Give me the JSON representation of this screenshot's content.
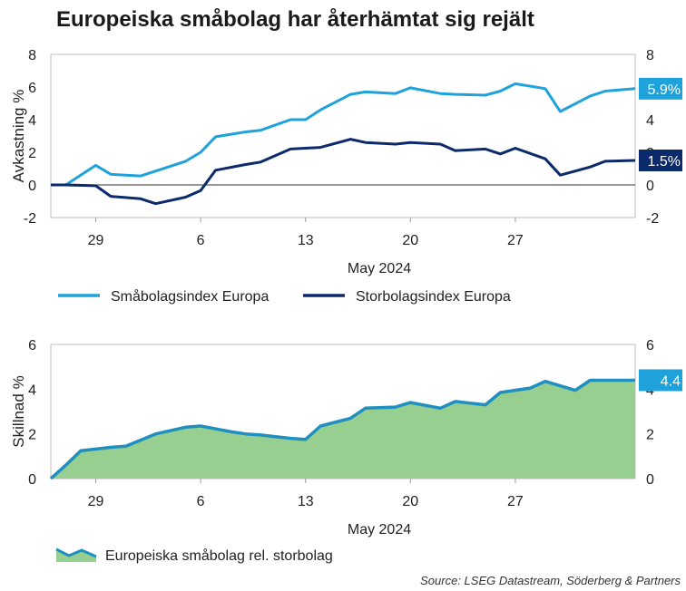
{
  "title": "Europeiska småbolag har återhämtat sig rejält",
  "source": "Source: LSEG Datastream, Söderberg & Partners",
  "colors": {
    "small": "#1fa2dc",
    "large": "#0b2a6b",
    "area_fill": "#96cf90",
    "area_line": "#1f8fbf"
  },
  "chart_data": [
    {
      "type": "line",
      "ylabel": "Avkastning %",
      "xlabel": "May 2024",
      "ylim": [
        -2,
        8
      ],
      "yticks": [
        -2,
        0,
        2,
        4,
        6,
        8
      ],
      "xlim": [
        "2024-04-26",
        "2024-06-04"
      ],
      "xticks": [
        {
          "date": "2024-04-29",
          "label": "29"
        },
        {
          "date": "2024-05-06",
          "label": "6"
        },
        {
          "date": "2024-05-13",
          "label": "13"
        },
        {
          "date": "2024-05-20",
          "label": "20"
        },
        {
          "date": "2024-05-27",
          "label": "27"
        }
      ],
      "x": [
        "2024-04-26",
        "2024-04-27",
        "2024-04-29",
        "2024-04-30",
        "2024-05-02",
        "2024-05-03",
        "2024-05-05",
        "2024-05-06",
        "2024-05-07",
        "2024-05-09",
        "2024-05-10",
        "2024-05-12",
        "2024-05-13",
        "2024-05-14",
        "2024-05-16",
        "2024-05-17",
        "2024-05-19",
        "2024-05-20",
        "2024-05-22",
        "2024-05-23",
        "2024-05-25",
        "2024-05-26",
        "2024-05-27",
        "2024-05-29",
        "2024-05-30",
        "2024-06-01",
        "2024-06-02",
        "2024-06-04"
      ],
      "series": [
        {
          "name": "Småbolagsindex Europa",
          "values": [
            0.0,
            0.0,
            1.2,
            0.65,
            0.55,
            0.85,
            1.45,
            2.0,
            2.95,
            3.25,
            3.35,
            4.0,
            4.0,
            4.6,
            5.55,
            5.7,
            5.6,
            5.95,
            5.6,
            5.55,
            5.5,
            5.75,
            6.2,
            5.9,
            4.5,
            5.45,
            5.75,
            5.9
          ],
          "end_label": "5.9%"
        },
        {
          "name": "Storbolagsindex Europa",
          "values": [
            0.0,
            0.0,
            -0.05,
            -0.7,
            -0.85,
            -1.15,
            -0.75,
            -0.35,
            0.9,
            1.25,
            1.4,
            2.2,
            2.25,
            2.3,
            2.8,
            2.6,
            2.5,
            2.6,
            2.5,
            2.1,
            2.2,
            1.9,
            2.25,
            1.6,
            0.6,
            1.1,
            1.45,
            1.5
          ],
          "end_label": "1.5%"
        }
      ]
    },
    {
      "type": "area",
      "ylabel": "Skillnad %",
      "xlabel": "May 2024",
      "ylim": [
        0,
        6
      ],
      "yticks": [
        0,
        2,
        4,
        6
      ],
      "xlim": [
        "2024-04-26",
        "2024-06-04"
      ],
      "xticks": [
        {
          "date": "2024-04-29",
          "label": "29"
        },
        {
          "date": "2024-05-06",
          "label": "6"
        },
        {
          "date": "2024-05-13",
          "label": "13"
        },
        {
          "date": "2024-05-20",
          "label": "20"
        },
        {
          "date": "2024-05-27",
          "label": "27"
        }
      ],
      "x": [
        "2024-04-26",
        "2024-04-27",
        "2024-04-28",
        "2024-04-30",
        "2024-05-01",
        "2024-05-03",
        "2024-05-05",
        "2024-05-06",
        "2024-05-08",
        "2024-05-09",
        "2024-05-10",
        "2024-05-12",
        "2024-05-13",
        "2024-05-14",
        "2024-05-16",
        "2024-05-17",
        "2024-05-19",
        "2024-05-20",
        "2024-05-22",
        "2024-05-23",
        "2024-05-25",
        "2024-05-26",
        "2024-05-28",
        "2024-05-29",
        "2024-05-31",
        "2024-06-01",
        "2024-06-03",
        "2024-06-04"
      ],
      "series": [
        {
          "name": "Europeiska småbolag rel. storbolag",
          "values": [
            0.0,
            0.6,
            1.25,
            1.4,
            1.45,
            2.0,
            2.3,
            2.35,
            2.1,
            2.0,
            1.95,
            1.8,
            1.75,
            2.35,
            2.7,
            3.15,
            3.2,
            3.4,
            3.15,
            3.45,
            3.3,
            3.85,
            4.05,
            4.35,
            3.95,
            4.4,
            4.4,
            4.4
          ],
          "end_label": "4.4"
        }
      ]
    }
  ]
}
